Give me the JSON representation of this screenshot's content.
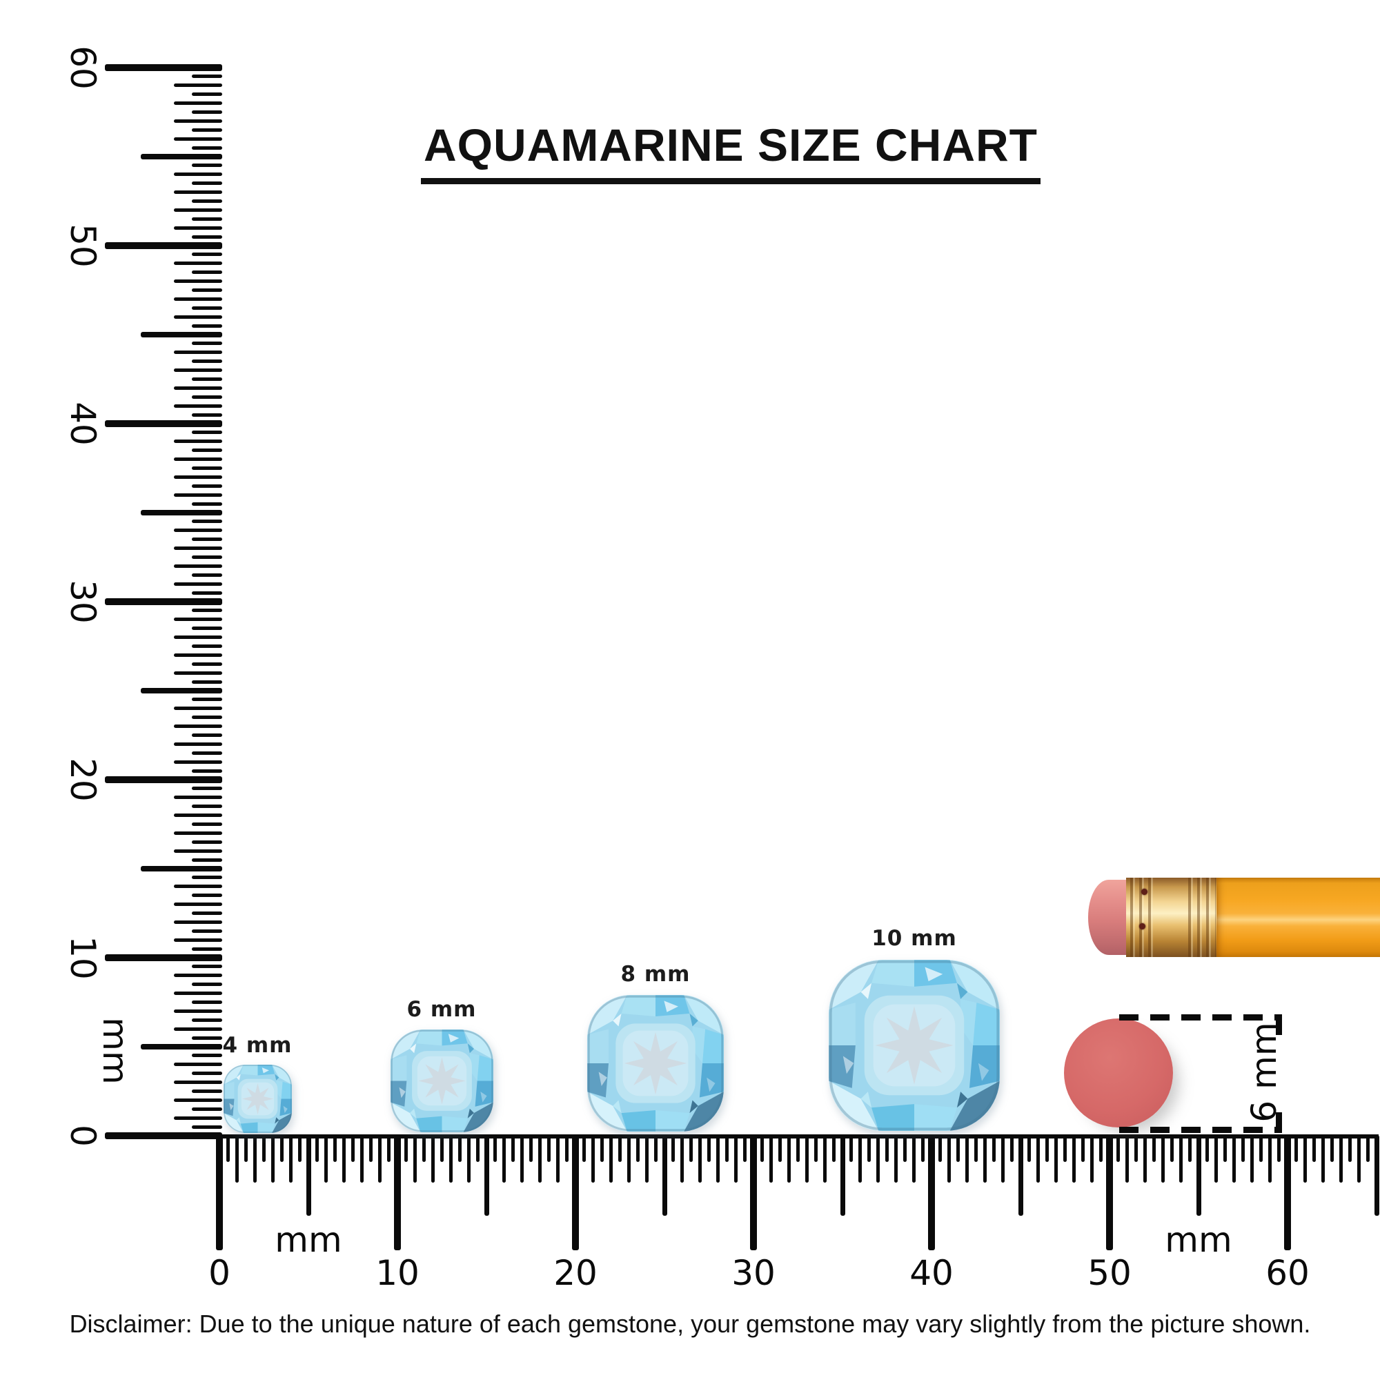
{
  "title": {
    "text": "AQUAMARINE SIZE CHART"
  },
  "rulers": {
    "vertical": {
      "unit_label": "mm",
      "tick_labels": [
        "0",
        "10",
        "20",
        "30",
        "40",
        "50",
        "60"
      ]
    },
    "horizontal": {
      "unit_labels": [
        "mm",
        "mm"
      ],
      "tick_labels": [
        "0",
        "10",
        "20",
        "30",
        "40",
        "50",
        "60"
      ]
    }
  },
  "gems": [
    {
      "label": "4 mm",
      "size_mm": 4
    },
    {
      "label": "6 mm",
      "size_mm": 6
    },
    {
      "label": "8 mm",
      "size_mm": 8
    },
    {
      "label": "10 mm",
      "size_mm": 10
    }
  ],
  "reference_objects": {
    "pencil": {
      "name": "pencil",
      "body_color": "#F6A722",
      "ferrule_color": "#E9C070",
      "eraser_color": "#D87D7C"
    },
    "eraser_end": {
      "label": "6 mm",
      "color": "#D66968"
    }
  },
  "disclaimer": "Disclaimer: Due to the unique nature of each gemstone, your gemstone may vary slightly from the picture shown.",
  "colors": {
    "ink": "#0A0A0A",
    "gem_base": "#9ED7EE",
    "gem_star": "#CFDBE3"
  }
}
